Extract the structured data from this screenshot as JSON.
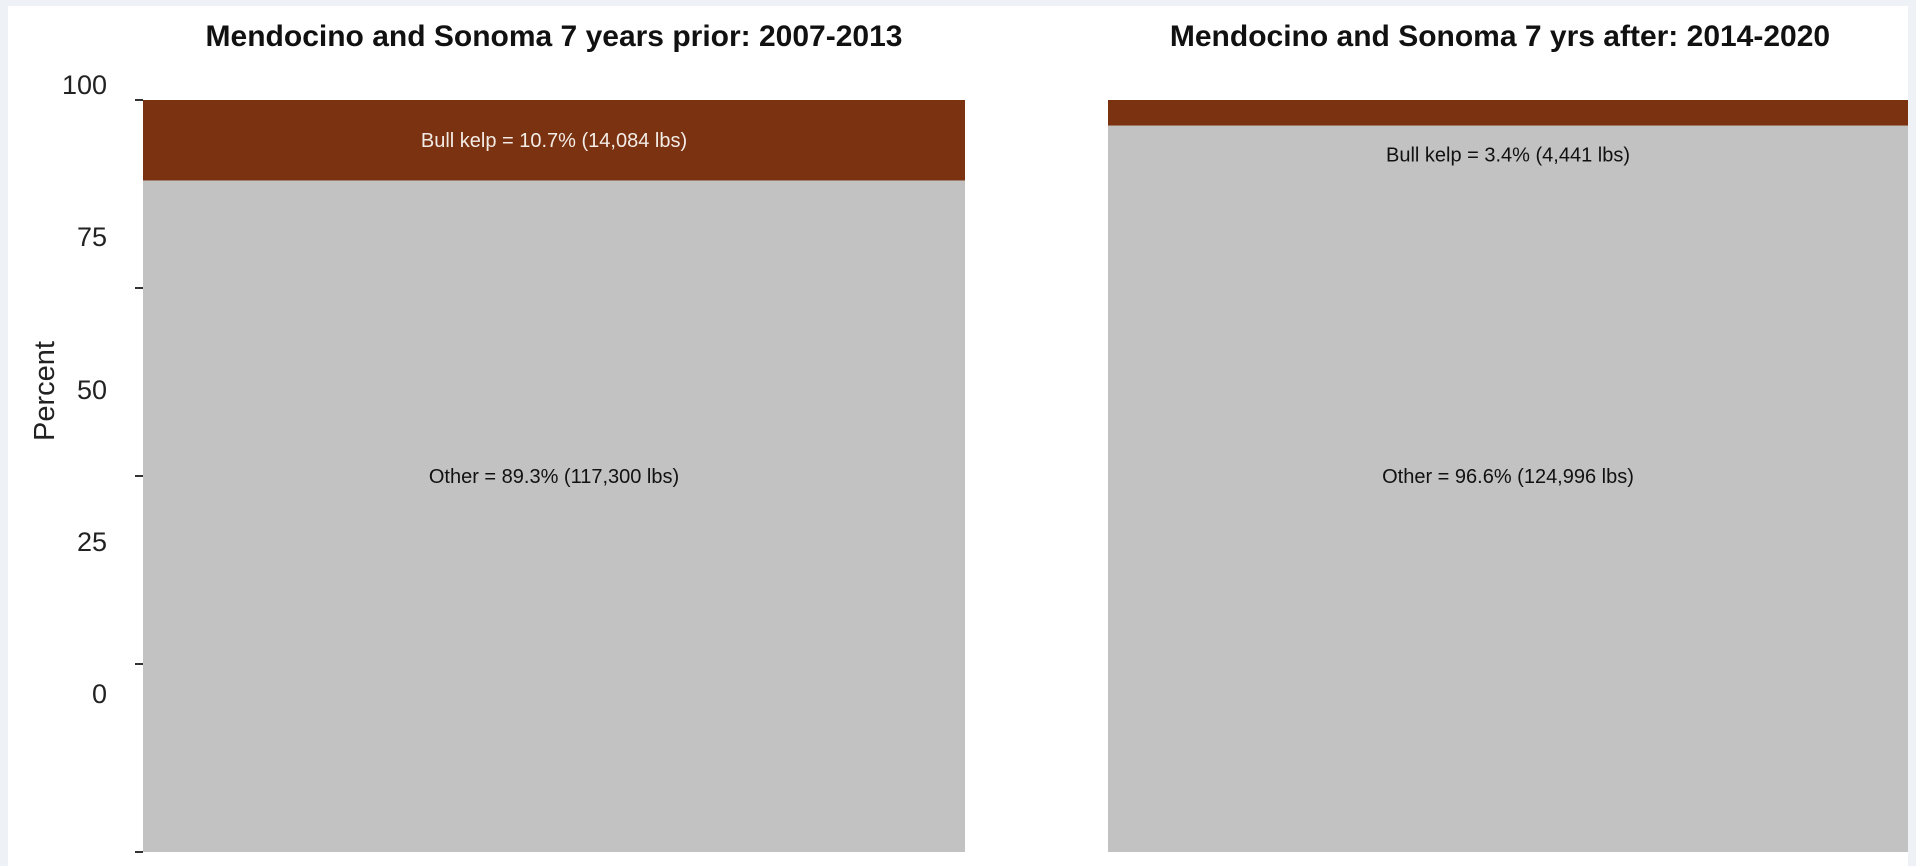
{
  "colors": {
    "bull_kelp": "#7a3211",
    "other": "#c2c2c2",
    "bull_kelp_label_inside": "#f3ece6",
    "other_label": "#111111"
  },
  "chart_data": [
    {
      "type": "bar",
      "stacked": true,
      "title": "Mendocino and Sonoma 7 years prior: 2007-2013",
      "ylabel": "Percent",
      "ylim": [
        0,
        100
      ],
      "yticks": [
        "0",
        "25",
        "50",
        "75",
        "100"
      ],
      "series": [
        {
          "name": "Other",
          "values": [
            89.3
          ],
          "label": "Other = 89.3% (117,300 lbs)"
        },
        {
          "name": "Bull kelp",
          "values": [
            10.7
          ],
          "label": "Bull kelp = 10.7% (14,084 lbs)"
        }
      ]
    },
    {
      "type": "bar",
      "stacked": true,
      "title": "Mendocino and Sonoma 7 yrs after: 2014-2020",
      "ylim": [
        0,
        100
      ],
      "series": [
        {
          "name": "Other",
          "values": [
            96.6
          ],
          "label": "Other = 96.6% (124,996 lbs)"
        },
        {
          "name": "Bull kelp",
          "values": [
            3.4
          ],
          "label": "Bull kelp = 3.4% (4,441 lbs)"
        }
      ]
    }
  ]
}
